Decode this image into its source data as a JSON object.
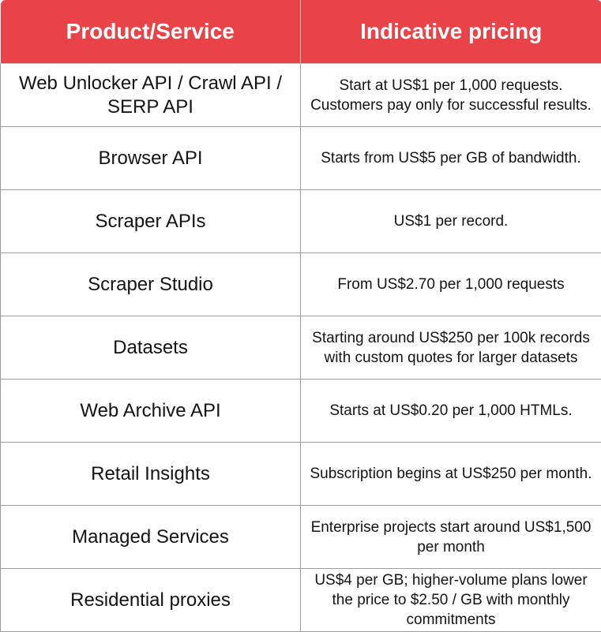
{
  "table": {
    "headers": [
      "Product/Service",
      "Indicative pricing"
    ],
    "rows": [
      {
        "product": "Web Unlocker API / Crawl API / SERP API",
        "price": "Start at US$1 per 1,000 requests. Customers pay only for successful results."
      },
      {
        "product": "Browser API",
        "price": "Starts from US$5 per GB of bandwidth."
      },
      {
        "product": "Scraper APIs",
        "price": "US$1 per record."
      },
      {
        "product": "Scraper Studio",
        "price": "From US$2.70 per 1,000 requests"
      },
      {
        "product": "Datasets",
        "price": "Starting around US$250 per 100k records with custom quotes for larger datasets"
      },
      {
        "product": "Web Archive API",
        "price": "Starts at US$0.20 per 1,000 HTMLs."
      },
      {
        "product": "Retail Insights",
        "price": "Subscription begins at US$250 per month."
      },
      {
        "product": "Managed Services",
        "price": "Enterprise projects start around US$1,500 per month"
      },
      {
        "product": "Residential proxies",
        "price": "US$4 per GB;  higher-volume plans lower the price to $2.50 / GB with monthly commitments"
      }
    ]
  },
  "colors": {
    "header_bg": "#e9434a",
    "header_text": "#ffffff",
    "body_text": "#141414",
    "border": "#9d9d9d"
  }
}
